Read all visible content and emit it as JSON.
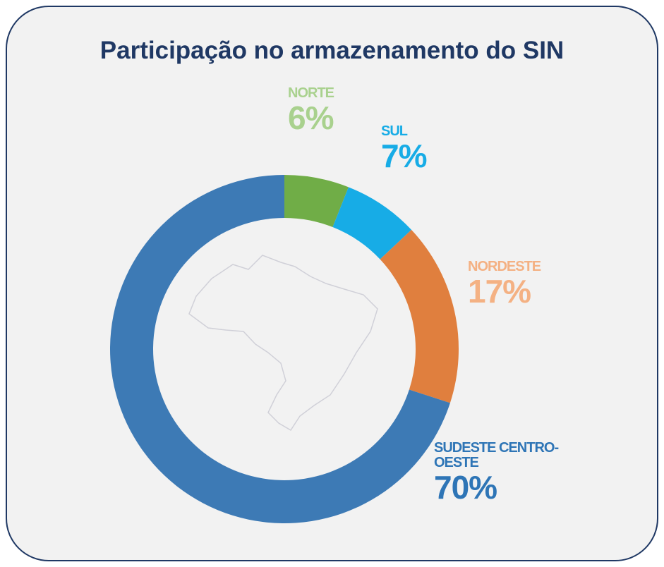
{
  "chart_data": {
    "type": "donut",
    "title": "Participação no armazenamento do SIN",
    "categories": [
      "NORTE",
      "SUL",
      "NORDESTE",
      "SUDESTE CENTRO-OESTE"
    ],
    "values": [
      6,
      7,
      17,
      70
    ],
    "value_labels": [
      "6%",
      "7%",
      "17%",
      "70%"
    ],
    "colors": [
      "#70ad47",
      "#17ace6",
      "#e07f3e",
      "#3d7ab5"
    ],
    "label_colors": [
      "#a9d18e",
      "#17ace6",
      "#f4b183",
      "#2e75b6"
    ]
  }
}
